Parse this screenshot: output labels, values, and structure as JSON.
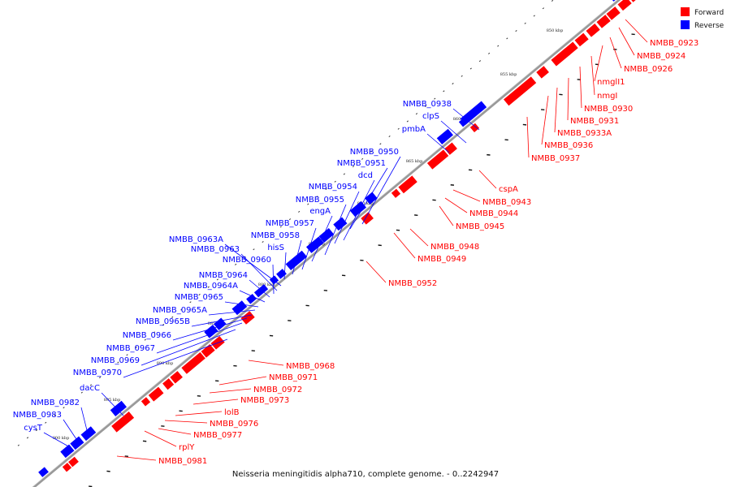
{
  "legend": [
    {
      "label": "Forward",
      "color": "#ff0000"
    },
    {
      "label": "Reverse",
      "color": "#0000ff"
    }
  ],
  "caption": "Neisseria meningitidis alpha710, complete genome. - 0..2242947",
  "colors": {
    "forward": "#ff0000",
    "reverse": "#0000ff",
    "backbone": "#999999"
  },
  "kbp_ticks": [
    "850 kbp",
    "855 kbp",
    "860 kbp",
    "865 kbp",
    "870 kbp",
    "875 kbp",
    "880 kbp",
    "885 kbp",
    "890 kbp",
    "895 kbp",
    "900 kbp"
  ],
  "forward_genes": [
    "NMBB_0923",
    "NMBB_0924",
    "NMBB_0926",
    "nmglI1",
    "nmgI",
    "NMBB_0930",
    "NMBB_0931",
    "NMBB_0933A",
    "NMBB_0936",
    "NMBB_0937",
    "cspA",
    "NMBB_0943",
    "NMBB_0944",
    "NMBB_0945",
    "NMBB_0948",
    "NMBB_0949",
    "NMBB_0952",
    "NMBB_0968",
    "NMBB_0971",
    "NMBB_0972",
    "NMBB_0973",
    "lolB",
    "NMBB_0976",
    "NMBB_0977",
    "rplY",
    "NMBB_0981"
  ],
  "reverse_genes": [
    "NMBB_0938",
    "clpS",
    "pmbA",
    "NMBB_0950",
    "NMBB_0951",
    "dcd",
    "NMBB_0954",
    "NMBB_0955",
    "engA",
    "NMBB_0957",
    "NMBB_0958",
    "hisS",
    "NMBB_0963A",
    "NMBB_0963",
    "NMBB_0960",
    "NMBB_0964",
    "NMBB_0964A",
    "NMBB_0965",
    "NMBB_0965A",
    "NMBB_0965B",
    "NMBB_0966",
    "NMBB_0967",
    "NMBB_0969",
    "NMBB_0970",
    "dacC",
    "NMBB_0982",
    "NMBB_0983",
    "cysT"
  ]
}
